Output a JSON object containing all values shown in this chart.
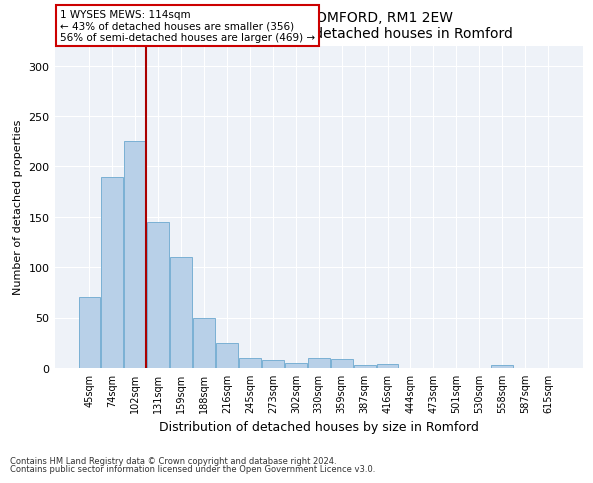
{
  "title1": "1, WYSES MEWS, ROMFORD, RM1 2EW",
  "title2": "Size of property relative to detached houses in Romford",
  "xlabel": "Distribution of detached houses by size in Romford",
  "ylabel": "Number of detached properties",
  "categories": [
    "45sqm",
    "74sqm",
    "102sqm",
    "131sqm",
    "159sqm",
    "188sqm",
    "216sqm",
    "245sqm",
    "273sqm",
    "302sqm",
    "330sqm",
    "359sqm",
    "387sqm",
    "416sqm",
    "444sqm",
    "473sqm",
    "501sqm",
    "530sqm",
    "558sqm",
    "587sqm",
    "615sqm"
  ],
  "values": [
    70,
    190,
    225,
    145,
    110,
    50,
    25,
    10,
    8,
    5,
    10,
    9,
    3,
    4,
    0,
    0,
    0,
    0,
    3,
    0,
    0
  ],
  "bar_color": "#b8d0e8",
  "bar_edge_color": "#7ab0d4",
  "vline_color": "#aa0000",
  "annotation_text": "1 WYSES MEWS: 114sqm\n← 43% of detached houses are smaller (356)\n56% of semi-detached houses are larger (469) →",
  "annotation_box_color": "#ffffff",
  "annotation_box_edge": "#cc0000",
  "ylim": [
    0,
    320
  ],
  "yticks": [
    0,
    50,
    100,
    150,
    200,
    250,
    300
  ],
  "footer1": "Contains HM Land Registry data © Crown copyright and database right 2024.",
  "footer2": "Contains public sector information licensed under the Open Government Licence v3.0.",
  "bg_color": "#eef2f8"
}
